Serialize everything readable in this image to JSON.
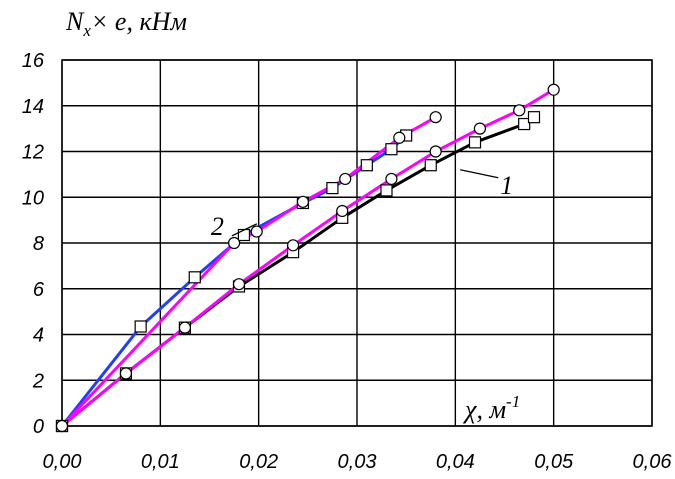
{
  "chart_data": {
    "type": "line",
    "ylabel_main": "N",
    "ylabel_sub": "x",
    "ylabel_rest": "× e, кНм",
    "xlabel_main": "χ, м",
    "xlabel_sup": "-1",
    "xlim": [
      0,
      0.06
    ],
    "ylim": [
      0,
      16
    ],
    "x_ticks": [
      0,
      0.01,
      0.02,
      0.03,
      0.04,
      0.05,
      0.06
    ],
    "x_tick_labels": [
      "0,00",
      "0,01",
      "0,02",
      "0,03",
      "0,04",
      "0,05",
      "0,06"
    ],
    "y_ticks": [
      0,
      2,
      4,
      6,
      8,
      10,
      12,
      14,
      16
    ],
    "y_tick_labels": [
      "0",
      "2",
      "4",
      "6",
      "8",
      "10",
      "12",
      "14",
      "16"
    ],
    "grid": true,
    "annotations": [
      {
        "text": "1",
        "x": 0.0405,
        "y": 11.2
      },
      {
        "text": "2",
        "x": 0.0185,
        "y": 8.4
      }
    ],
    "series": [
      {
        "color": "#000000",
        "marker": "square",
        "x": [
          0,
          0.0065,
          0.0125,
          0.018,
          0.0235,
          0.0285,
          0.033,
          0.0375,
          0.042,
          0.047,
          0.048
        ],
        "y": [
          0,
          2.3,
          4.3,
          6.1,
          7.6,
          9.1,
          10.3,
          11.4,
          12.4,
          13.2,
          13.5
        ]
      },
      {
        "color": "#ff00ff",
        "marker": "circle",
        "x": [
          0,
          0.0065,
          0.0125,
          0.018,
          0.0235,
          0.0285,
          0.0335,
          0.038,
          0.0425,
          0.0465,
          0.05
        ],
        "y": [
          0,
          2.3,
          4.3,
          6.2,
          7.9,
          9.4,
          10.8,
          12.0,
          13.0,
          13.8,
          14.7
        ]
      },
      {
        "color": "#1f3fff",
        "marker": "square",
        "x": [
          0,
          0.008,
          0.0135,
          0.0185,
          0.0245,
          0.0275,
          0.031,
          0.0335,
          0.035
        ],
        "y": [
          0,
          4.35,
          6.5,
          8.35,
          9.75,
          10.4,
          11.4,
          12.1,
          12.7
        ]
      },
      {
        "color": "#ff00ff",
        "marker": "circle",
        "x": [
          0,
          0.0175,
          0.0198,
          0.0245,
          0.0288,
          0.0343,
          0.038
        ],
        "y": [
          0,
          8.0,
          8.5,
          9.8,
          10.8,
          12.6,
          13.5
        ]
      }
    ]
  }
}
